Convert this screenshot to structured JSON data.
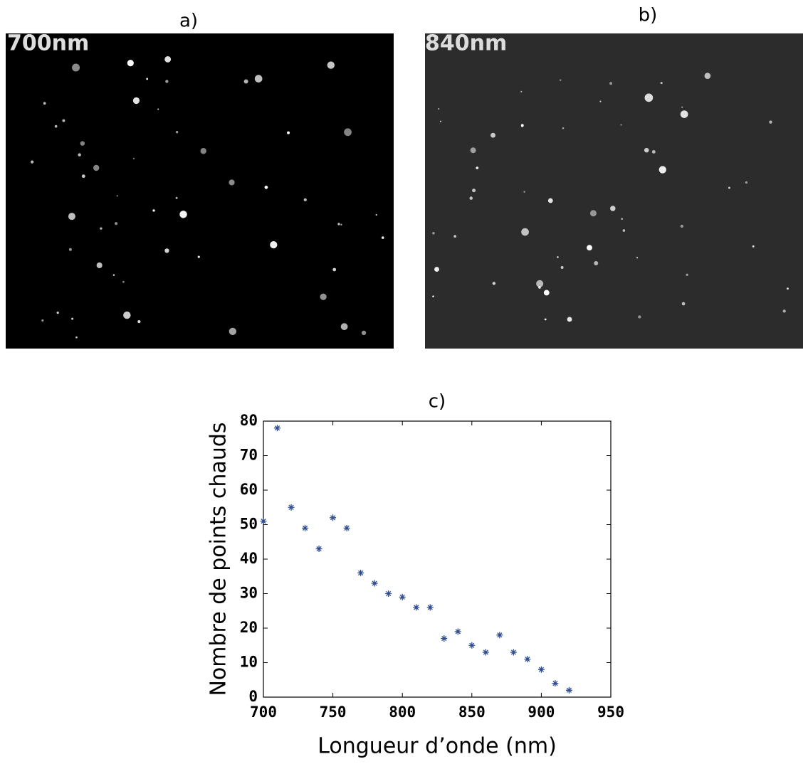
{
  "panels": [
    {
      "label": "a)",
      "overlay": "700nm"
    },
    {
      "label": "b)",
      "overlay": "840nm"
    }
  ],
  "chart_data": {
    "type": "scatter",
    "title": "c)",
    "xlabel": "Longueur d’onde (nm)",
    "ylabel": "Nombre de points chauds",
    "x": [
      700,
      710,
      720,
      730,
      740,
      750,
      760,
      770,
      780,
      790,
      800,
      810,
      820,
      830,
      840,
      850,
      860,
      870,
      880,
      890,
      900,
      910,
      920
    ],
    "series": [
      {
        "name": "Nombre de points chauds",
        "color": "#2b4c9b",
        "values": [
          51,
          78,
          55,
          49,
          43,
          52,
          49,
          36,
          33,
          30,
          29,
          26,
          26,
          17,
          19,
          15,
          13,
          18,
          13,
          11,
          8,
          4,
          2
        ]
      }
    ],
    "xlim": [
      700,
      950
    ],
    "xticks": [
      700,
      750,
      800,
      850,
      900,
      950
    ],
    "ylim": [
      0,
      80
    ],
    "yticks": [
      0,
      10,
      20,
      30,
      40,
      50,
      60,
      70,
      80
    ],
    "grid": false
  }
}
